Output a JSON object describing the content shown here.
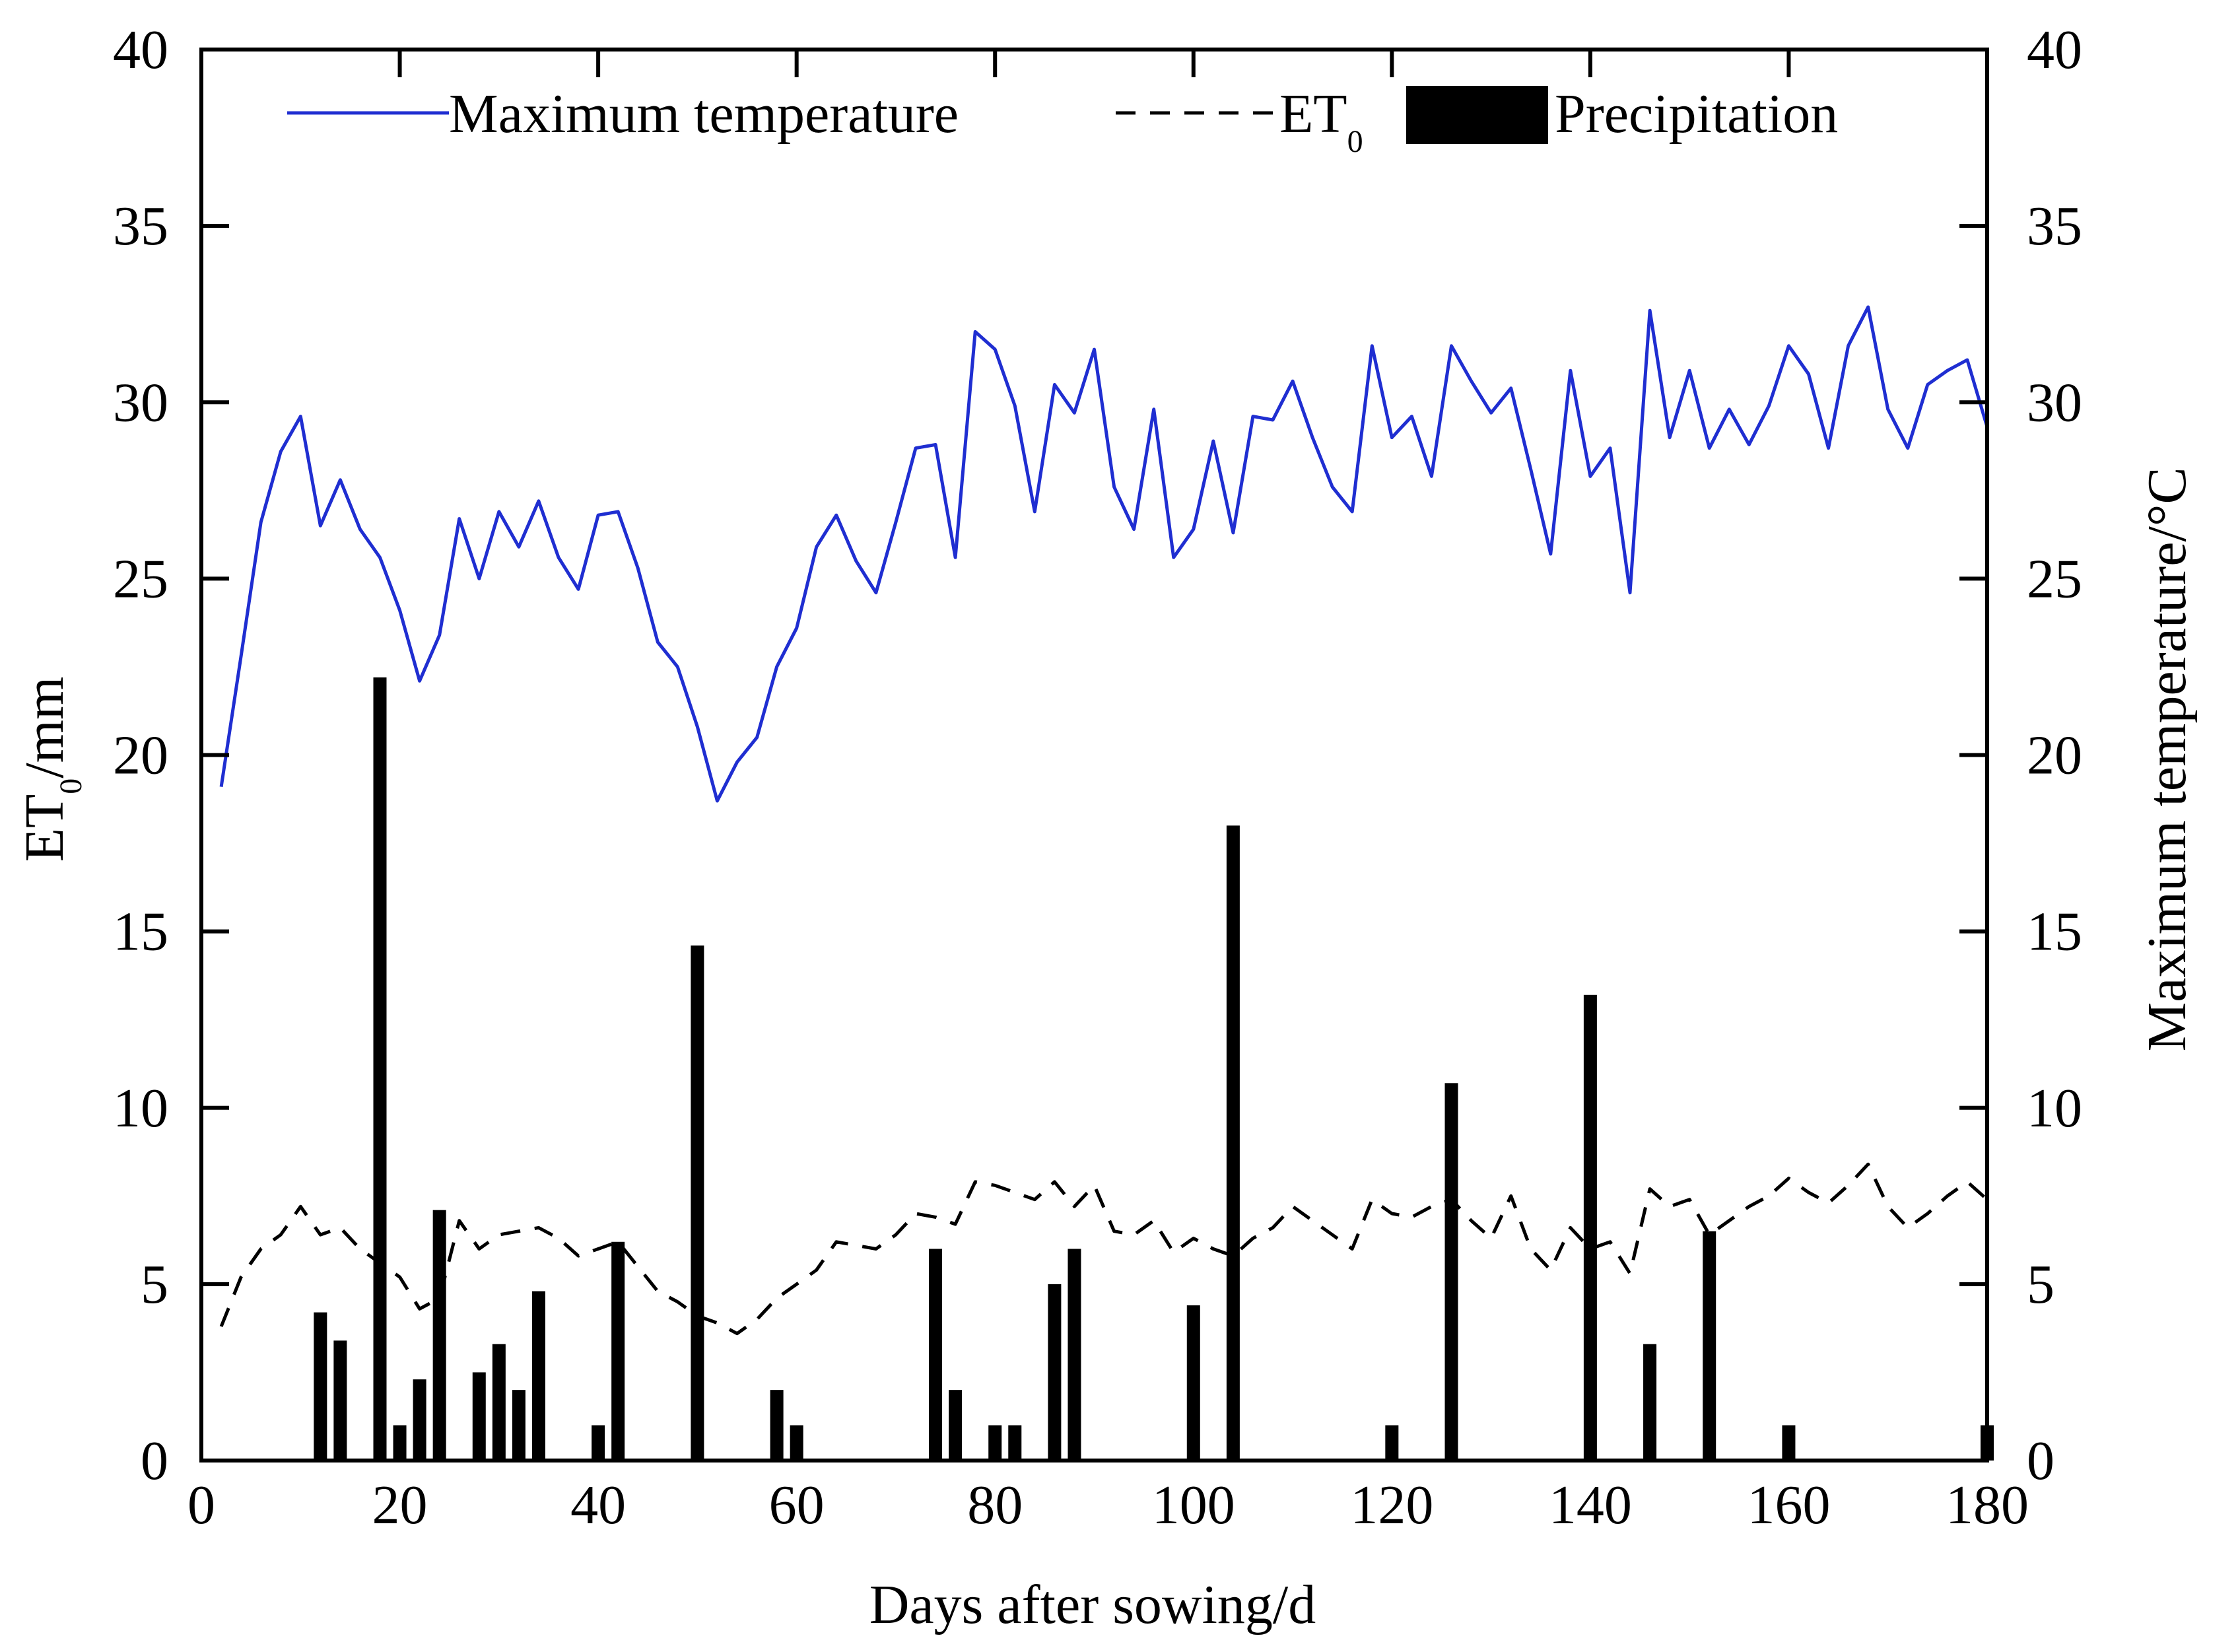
{
  "chart_data": {
    "type": "bar+line",
    "xlabel": "Days after sowing/d",
    "ylabel_left": "ET",
    "ylabel_left_sub": "0",
    "ylabel_left_suffix": "/mm",
    "ylabel_right": "Maximum temperature/°C",
    "xlim": [
      0,
      180
    ],
    "ylim_left": [
      0,
      40
    ],
    "ylim_right": [
      0,
      40
    ],
    "x_ticks": [
      0,
      20,
      40,
      60,
      80,
      100,
      120,
      140,
      160,
      180
    ],
    "y_ticks": [
      0,
      5,
      10,
      15,
      20,
      25,
      30,
      35,
      40
    ],
    "legend": {
      "position": "top",
      "items": [
        {
          "name": "Maximum temperature",
          "style": "solid-line",
          "color": "#1f2ed1"
        },
        {
          "name": "ET",
          "sub": "0",
          "style": "dashed-line",
          "color": "#000000"
        },
        {
          "name": "Precipitation",
          "style": "bar",
          "color": "#000000"
        }
      ]
    },
    "series": [
      {
        "name": "Maximum temperature",
        "axis": "right",
        "color": "#1f2ed1",
        "x": [
          2,
          4,
          6,
          8,
          10,
          12,
          14,
          16,
          18,
          20,
          22,
          24,
          26,
          28,
          30,
          32,
          34,
          36,
          38,
          40,
          42,
          44,
          46,
          48,
          50,
          52,
          54,
          56,
          58,
          60,
          62,
          64,
          66,
          68,
          70,
          72,
          74,
          76,
          78,
          80,
          82,
          84,
          86,
          88,
          90,
          92,
          94,
          96,
          98,
          100,
          102,
          104,
          106,
          108,
          110,
          112,
          114,
          116,
          118,
          120,
          122,
          124,
          126,
          128,
          130,
          132,
          134,
          136,
          138,
          140,
          142,
          144,
          146,
          148,
          150,
          152,
          154,
          156,
          158,
          160,
          162,
          164,
          166,
          168,
          170,
          172,
          174,
          176,
          178,
          180
        ],
        "values": [
          19.1,
          22.8,
          26.6,
          28.6,
          29.6,
          26.5,
          27.8,
          26.4,
          25.6,
          24.1,
          22.1,
          23.4,
          26.7,
          25.0,
          26.9,
          25.9,
          27.2,
          25.6,
          24.7,
          26.8,
          26.9,
          25.3,
          23.2,
          22.5,
          20.8,
          18.7,
          19.8,
          20.5,
          22.5,
          23.6,
          25.9,
          26.8,
          25.5,
          24.6,
          26.6,
          28.7,
          28.8,
          25.6,
          32.0,
          31.5,
          29.9,
          26.9,
          30.5,
          29.7,
          31.5,
          27.6,
          26.4,
          29.8,
          25.6,
          26.4,
          28.9,
          26.3,
          29.6,
          29.5,
          30.6,
          29.0,
          27.6,
          26.9,
          31.6,
          29.0,
          29.6,
          27.9,
          31.6,
          30.6,
          29.7,
          30.4,
          28.1,
          25.7,
          30.9,
          27.9,
          28.7,
          24.6,
          32.6,
          29.0,
          30.9,
          28.7,
          29.8,
          28.8,
          29.9,
          31.6,
          30.8,
          28.7,
          31.6,
          32.7,
          29.8,
          28.7,
          30.5,
          30.9,
          31.2,
          29.3
        ]
      },
      {
        "name": "ET0",
        "axis": "left",
        "color": "#000000",
        "x": [
          2,
          4,
          6,
          8,
          10,
          12,
          14,
          16,
          18,
          20,
          22,
          24,
          26,
          28,
          30,
          32,
          34,
          36,
          38,
          40,
          42,
          44,
          46,
          48,
          50,
          52,
          54,
          56,
          58,
          60,
          62,
          64,
          66,
          68,
          70,
          72,
          74,
          76,
          78,
          80,
          82,
          84,
          86,
          88,
          90,
          92,
          94,
          96,
          98,
          100,
          102,
          104,
          106,
          108,
          110,
          112,
          114,
          116,
          118,
          120,
          122,
          124,
          126,
          128,
          130,
          132,
          134,
          136,
          138,
          140,
          142,
          144,
          146,
          148,
          150,
          152,
          154,
          156,
          158,
          160,
          162,
          164,
          166,
          168,
          170,
          172,
          174,
          176,
          178,
          180
        ],
        "values": [
          3.8,
          5.2,
          6.0,
          6.4,
          7.2,
          6.4,
          6.6,
          6.0,
          5.6,
          5.2,
          4.3,
          4.6,
          6.8,
          6.0,
          6.4,
          6.5,
          6.6,
          6.3,
          5.8,
          6.0,
          6.2,
          5.5,
          4.8,
          4.5,
          4.1,
          3.9,
          3.6,
          4.0,
          4.6,
          5.0,
          5.4,
          6.2,
          6.1,
          6.0,
          6.4,
          7.0,
          6.9,
          6.7,
          7.9,
          7.8,
          7.6,
          7.4,
          7.9,
          7.2,
          7.8,
          6.5,
          6.4,
          6.8,
          5.9,
          6.3,
          6.0,
          5.8,
          6.3,
          6.6,
          7.2,
          6.8,
          6.4,
          6.0,
          7.4,
          7.0,
          6.9,
          7.2,
          7.4,
          6.8,
          6.3,
          7.5,
          6.0,
          5.4,
          6.6,
          6.0,
          6.2,
          5.3,
          7.7,
          7.2,
          7.4,
          6.4,
          6.8,
          7.2,
          7.5,
          8.0,
          7.6,
          7.3,
          7.8,
          8.4,
          7.2,
          6.6,
          7.0,
          7.5,
          7.9,
          7.4
        ]
      },
      {
        "name": "Precipitation",
        "axis": "left",
        "type": "bar",
        "color": "#000000",
        "x": [
          12,
          14,
          18,
          20,
          22,
          24,
          28,
          30,
          32,
          34,
          40,
          42,
          50,
          58,
          60,
          74,
          76,
          80,
          82,
          86,
          88,
          100,
          104,
          120,
          126,
          140,
          146,
          152,
          160,
          180
        ],
        "values": [
          4.2,
          3.4,
          22.2,
          1.0,
          2.3,
          7.1,
          2.5,
          3.3,
          2.0,
          4.8,
          1.0,
          6.2,
          14.6,
          2.0,
          1.0,
          6.0,
          2.0,
          1.0,
          1.0,
          5.0,
          6.0,
          4.4,
          18.0,
          1.0,
          10.7,
          13.2,
          3.3,
          6.5,
          1.0,
          1.0
        ]
      }
    ]
  }
}
